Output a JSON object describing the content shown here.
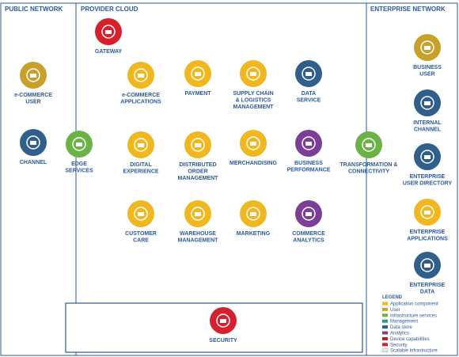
{
  "regions": [
    "PUBLIC NETWORK",
    "PROVIDER CLOUD",
    "ENTERPRISE NETWORK"
  ],
  "nodes": [
    {
      "label": [
        "GATEWAY"
      ]
    },
    {
      "label": [
        "e-COMMERCE",
        "USER"
      ]
    },
    {
      "label": [
        "CHANNEL"
      ]
    },
    {
      "label": [
        "EDGE",
        "SERVICES"
      ]
    },
    {
      "label": [
        "e-COMMERCE",
        "APPLICATIONS"
      ]
    },
    {
      "label": [
        "PAYMENT"
      ]
    },
    {
      "label": [
        "SUPPLY CHAIN",
        "& LOGISTICS",
        "MANAGEMENT"
      ]
    },
    {
      "label": [
        "DATA",
        "SERVICE"
      ]
    },
    {
      "label": [
        "DIGITAL",
        "EXPERIENCE"
      ]
    },
    {
      "label": [
        "DISTRIBUTED",
        "ORDER",
        "MANAGEMENT"
      ]
    },
    {
      "label": [
        "MERCHANDISING"
      ]
    },
    {
      "label": [
        "BUSINESS",
        "PERFORMANCE"
      ]
    },
    {
      "label": [
        "TRANSFORMATION &",
        "CONNECTIVITY"
      ]
    },
    {
      "label": [
        "CUSTOMER",
        "CARE"
      ]
    },
    {
      "label": [
        "WAREHOUSE",
        "MANAGEMENT"
      ]
    },
    {
      "label": [
        "MARKETING"
      ]
    },
    {
      "label": [
        "COMMERCE",
        "ANALYTICS"
      ]
    },
    {
      "label": [
        "BUSINESS",
        "USER"
      ]
    },
    {
      "label": [
        "INTERNAL",
        "CHANNEL"
      ]
    },
    {
      "label": [
        "ENTERPRISE",
        "USER DIRECTORY"
      ]
    },
    {
      "label": [
        "ENTERPRISE",
        "APPLICATIONS"
      ]
    },
    {
      "label": [
        "ENTERPRISE",
        "DATA"
      ]
    },
    {
      "label": [
        "SECURITY"
      ]
    }
  ],
  "legend": {
    "title": "LEGEND",
    "items": [
      "Application component",
      "User",
      "Infrastructure services",
      "Management",
      "Data store",
      "Analytics",
      "Device capabilities",
      "Security",
      "Scalable infrastructure"
    ]
  }
}
